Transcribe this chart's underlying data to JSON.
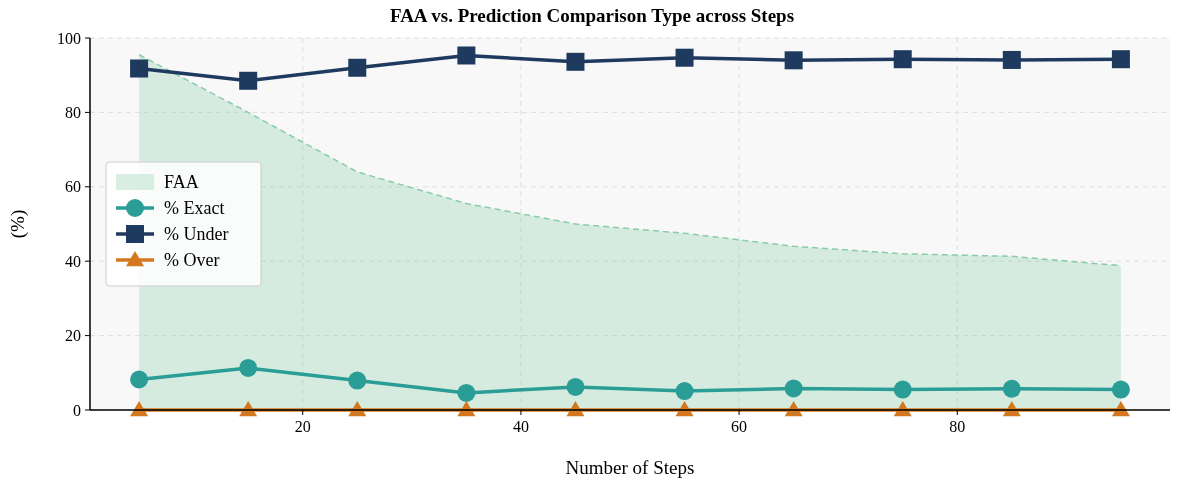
{
  "chart_data": {
    "type": "line",
    "title": "FAA vs. Prediction Comparison Type across Steps",
    "xlabel": "Number of Steps",
    "ylabel": "(%)",
    "x": [
      5,
      15,
      25,
      35,
      45,
      55,
      65,
      75,
      85,
      95
    ],
    "series": [
      {
        "name": "FAA",
        "type": "area",
        "color": "#88ccaa",
        "line_style": "dashed",
        "marker": "none",
        "values": [
          95.5,
          80,
          64,
          55.5,
          50,
          47.5,
          44,
          42,
          41.3,
          38.8
        ]
      },
      {
        "name": "% Exact",
        "color": "#2a9d96",
        "marker": "circle",
        "line_style": "solid",
        "values": [
          8.2,
          11.3,
          7.9,
          4.6,
          6.2,
          5.1,
          5.8,
          5.5,
          5.7,
          5.5
        ]
      },
      {
        "name": "% Under",
        "color": "#1f3a5f",
        "marker": "square",
        "line_style": "solid",
        "values": [
          91.8,
          88.5,
          92,
          95.3,
          93.6,
          94.7,
          94,
          94.3,
          94.1,
          94.3
        ]
      },
      {
        "name": "% Over",
        "color": "#d4781f",
        "marker": "triangle",
        "line_style": "solid",
        "values": [
          0,
          0,
          0,
          0,
          0,
          0,
          0,
          0,
          0,
          0
        ]
      }
    ],
    "xlim": [
      0.5,
      99.5
    ],
    "xticks": [
      20,
      40,
      60,
      80
    ],
    "ylim": [
      0,
      100
    ],
    "yticks": [
      0,
      20,
      40,
      60,
      80,
      100
    ],
    "grid": true,
    "legend": "left"
  }
}
